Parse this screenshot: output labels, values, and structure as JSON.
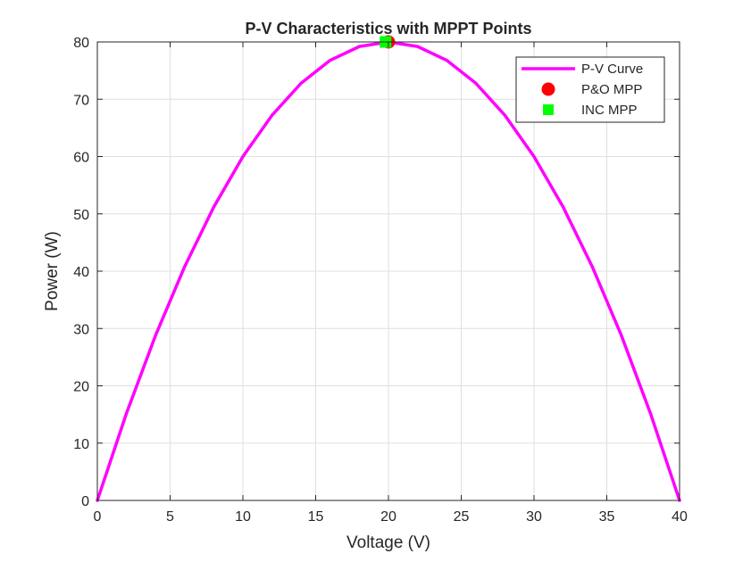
{
  "chart_data": {
    "type": "line",
    "title": "P-V Characteristics with MPPT Points",
    "xlabel": "Voltage (V)",
    "ylabel": "Power (W)",
    "xlim": [
      0,
      40
    ],
    "ylim": [
      0,
      80
    ],
    "xticks": [
      0,
      5,
      10,
      15,
      20,
      25,
      30,
      35,
      40
    ],
    "yticks": [
      0,
      10,
      20,
      30,
      40,
      50,
      60,
      70,
      80
    ],
    "grid": true,
    "legend_position": "top-right",
    "series": [
      {
        "name": "P-V Curve",
        "kind": "line",
        "color": "#ff00ff",
        "x": [
          0,
          2,
          4,
          6,
          8,
          10,
          12,
          14,
          16,
          18,
          20,
          22,
          24,
          26,
          28,
          30,
          32,
          34,
          36,
          38,
          40
        ],
        "y": [
          0,
          15.2,
          28.8,
          40.8,
          51.2,
          60,
          67.2,
          72.8,
          76.8,
          79.2,
          80,
          79.2,
          76.8,
          72.8,
          67.2,
          60,
          51.2,
          40.8,
          28.8,
          15.2,
          0
        ]
      },
      {
        "name": "P&O MPP",
        "kind": "marker-circle",
        "color": "#ff0000",
        "x": [
          20
        ],
        "y": [
          80
        ]
      },
      {
        "name": "INC MPP",
        "kind": "marker-square",
        "color": "#00ff00",
        "x": [
          19.8
        ],
        "y": [
          80
        ]
      }
    ]
  }
}
